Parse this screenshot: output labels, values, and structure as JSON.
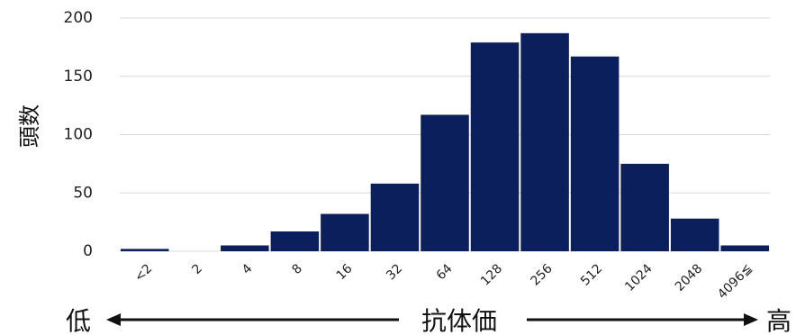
{
  "chart_data": {
    "type": "bar",
    "categories": [
      "<2",
      "2",
      "4",
      "8",
      "16",
      "32",
      "64",
      "128",
      "256",
      "512",
      "1024",
      "2048",
      "4096≦"
    ],
    "values": [
      2,
      0,
      5,
      17,
      32,
      58,
      117,
      179,
      187,
      167,
      75,
      28,
      5
    ],
    "ylabel": "頭数",
    "xlabel": "抗体価",
    "x_low_label": "低",
    "x_high_label": "高",
    "ylim": [
      0,
      200
    ],
    "yticks": [
      0,
      50,
      100,
      150,
      200
    ],
    "grid": true,
    "bar_color": "#0b1f5c",
    "grid_color": "#d9d9d9"
  }
}
